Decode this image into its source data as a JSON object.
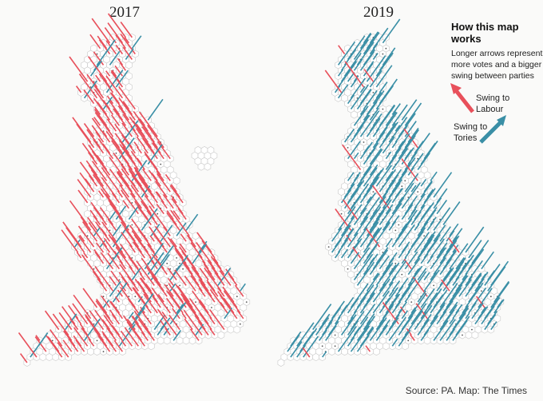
{
  "maps": [
    {
      "id": "2017",
      "title": "2017",
      "dominant": "labour"
    },
    {
      "id": "2019",
      "title": "2019",
      "dominant": "tory"
    }
  ],
  "legend": {
    "title": "How this map works",
    "description": "Longer arrows represent more votes and a bigger swing between parties",
    "labour_label": "Swing to Labour",
    "tory_label": "Swing to Tories"
  },
  "colors": {
    "labour": "#e8505b",
    "tory": "#3a8fa6",
    "hex_stroke": "#c9c9c9",
    "background": "#fafaf9"
  },
  "source": "Source: PA. Map: The Times"
}
